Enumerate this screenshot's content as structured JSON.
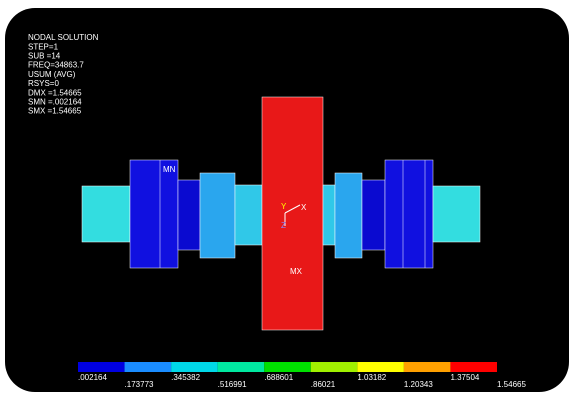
{
  "header": {
    "lines": [
      "NODAL SOLUTION",
      "STEP=1",
      "SUB =14",
      "FREQ=34863.7",
      "USUM    (AVG)",
      "RSYS=0",
      "DMX =1.54665",
      "SMN =.002164",
      "SMX =1.54665"
    ]
  },
  "model": {
    "min_label": "MN",
    "max_label": "MX",
    "axis_y": "Y",
    "axis_x": "X",
    "axis_z": "Z"
  },
  "legend": {
    "colors": [
      "#0000e0",
      "#1a8cff",
      "#00d8e8",
      "#00e8a0",
      "#00e000",
      "#a0f000",
      "#ffff00",
      "#ffa000",
      "#ff0000"
    ],
    "labels": [
      ".002164",
      ".173773",
      ".345382",
      ".516991",
      ".688601",
      ".86021",
      "1.03182",
      "1.20343",
      "1.37504",
      "1.54665"
    ]
  }
}
